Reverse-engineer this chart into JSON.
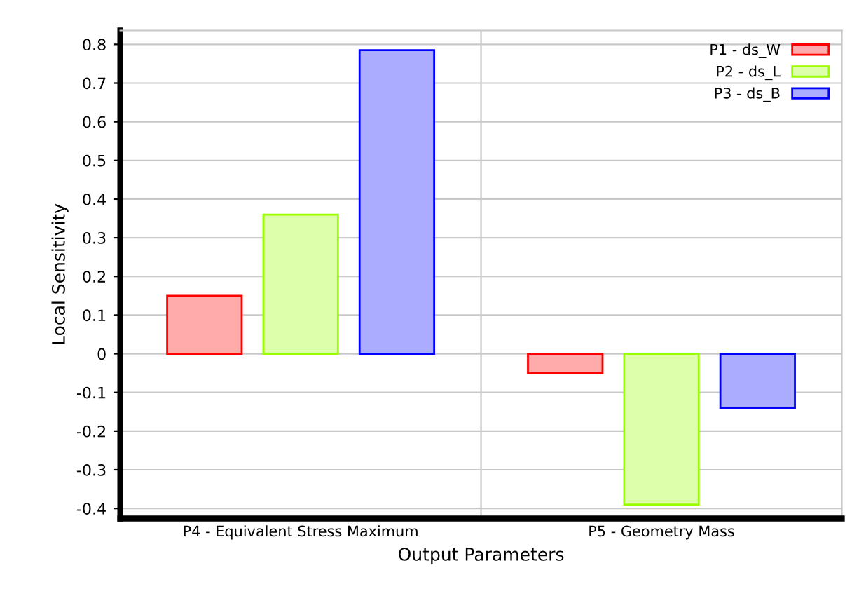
{
  "chart_data": {
    "type": "bar",
    "xlabel": "Output Parameters",
    "ylabel": "Local Sensitivity",
    "categories": [
      "P4 - Equivalent Stress Maximum",
      "P5 - Geometry Mass"
    ],
    "series": [
      {
        "name": "P1 - ds_W",
        "color": "#ff0000",
        "values": [
          0.15,
          -0.05
        ]
      },
      {
        "name": "P2 - ds_L",
        "color": "#99ff00",
        "values": [
          0.36,
          -0.39
        ]
      },
      {
        "name": "P3 - ds_B",
        "color": "#0000ff",
        "values": [
          0.785,
          -0.14
        ]
      }
    ],
    "ylim": [
      -0.426,
      0.836
    ],
    "yticks": [
      -0.4,
      -0.3,
      -0.2,
      -0.1,
      0,
      0.1,
      0.2,
      0.3,
      0.4,
      0.5,
      0.6,
      0.7,
      0.8
    ],
    "grid": true,
    "legend": "top right"
  }
}
